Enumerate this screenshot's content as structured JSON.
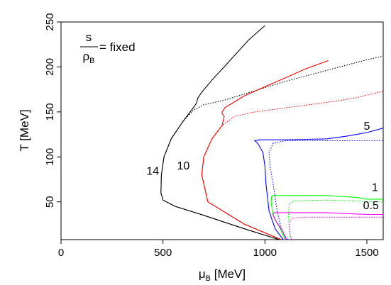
{
  "chart_data": {
    "type": "line",
    "ylabel": "T [MeV]",
    "xlabel_symbol": "μ",
    "xlabel_sub": "B",
    "xlabel_unit": " [MeV]",
    "xlim": [
      0,
      1580
    ],
    "ylim": [
      8,
      250
    ],
    "x_ticks": [
      0,
      500,
      1000,
      1500
    ],
    "y_ticks": [
      50,
      100,
      150,
      200,
      250
    ],
    "inset": {
      "numerator": "s",
      "denominator_symbol": "ρ",
      "denominator_sub": "B",
      "rhs": "= fixed"
    },
    "series": [
      {
        "name": "14",
        "color": "#000000",
        "solid": [
          [
            1070,
            8
          ],
          [
            900,
            20
          ],
          [
            700,
            35
          ],
          [
            560,
            45
          ],
          [
            500,
            52
          ],
          [
            490,
            60
          ],
          [
            492,
            80
          ],
          [
            505,
            100
          ],
          [
            540,
            120
          ],
          [
            600,
            140
          ],
          [
            650,
            155
          ],
          [
            665,
            160
          ],
          [
            670,
            165
          ],
          [
            690,
            172
          ],
          [
            750,
            188
          ],
          [
            800,
            200
          ],
          [
            860,
            215
          ],
          [
            920,
            230
          ],
          [
            1000,
            246
          ]
        ],
        "dotted": [
          [
            1070,
            8
          ],
          [
            900,
            20
          ],
          [
            700,
            35
          ],
          [
            560,
            45
          ],
          [
            500,
            52
          ],
          [
            490,
            60
          ],
          [
            492,
            80
          ],
          [
            505,
            100
          ],
          [
            540,
            120
          ],
          [
            600,
            140
          ],
          [
            650,
            152
          ],
          [
            700,
            158
          ],
          [
            800,
            163
          ],
          [
            900,
            170
          ],
          [
            1000,
            177
          ],
          [
            1100,
            184
          ],
          [
            1200,
            190
          ],
          [
            1300,
            196
          ],
          [
            1400,
            202
          ],
          [
            1500,
            208
          ],
          [
            1580,
            212
          ]
        ]
      },
      {
        "name": "10",
        "color": "#ff0000",
        "solid": [
          [
            1080,
            8
          ],
          [
            900,
            25
          ],
          [
            720,
            50
          ],
          [
            690,
            80
          ],
          [
            700,
            100
          ],
          [
            740,
            120
          ],
          [
            790,
            135
          ],
          [
            800,
            145
          ],
          [
            790,
            148
          ],
          [
            790,
            150
          ],
          [
            805,
            155
          ],
          [
            900,
            168
          ],
          [
            1000,
            178
          ],
          [
            1100,
            188
          ],
          [
            1200,
            198
          ],
          [
            1310,
            207
          ]
        ],
        "dotted": [
          [
            1080,
            8
          ],
          [
            900,
            25
          ],
          [
            720,
            50
          ],
          [
            690,
            80
          ],
          [
            700,
            100
          ],
          [
            740,
            120
          ],
          [
            790,
            135
          ],
          [
            850,
            145
          ],
          [
            950,
            150
          ],
          [
            1050,
            153
          ],
          [
            1150,
            156
          ],
          [
            1250,
            159
          ],
          [
            1350,
            162
          ],
          [
            1450,
            166
          ],
          [
            1580,
            173
          ]
        ]
      },
      {
        "name": "5",
        "color": "#0000ff",
        "solid": [
          [
            1090,
            8
          ],
          [
            1050,
            20
          ],
          [
            1020,
            40
          ],
          [
            1005,
            70
          ],
          [
            1000,
            90
          ],
          [
            990,
            105
          ],
          [
            965,
            115
          ],
          [
            950,
            118
          ],
          [
            975,
            119
          ],
          [
            1100,
            119
          ],
          [
            1300,
            120
          ],
          [
            1400,
            123
          ],
          [
            1500,
            127
          ],
          [
            1580,
            132
          ]
        ],
        "dotted": [
          [
            1110,
            8
          ],
          [
            1080,
            20
          ],
          [
            1060,
            40
          ],
          [
            1040,
            70
          ],
          [
            1025,
            90
          ],
          [
            1020,
            105
          ],
          [
            1040,
            115
          ],
          [
            1100,
            118
          ],
          [
            1300,
            118
          ],
          [
            1500,
            118
          ],
          [
            1580,
            118
          ]
        ]
      },
      {
        "name": "1",
        "color": "#00ff00",
        "solid": [
          [
            1100,
            8
          ],
          [
            1080,
            18
          ],
          [
            1040,
            35
          ],
          [
            1030,
            50
          ],
          [
            1033,
            56
          ],
          [
            1040,
            57
          ],
          [
            1200,
            57
          ],
          [
            1300,
            57
          ],
          [
            1450,
            55
          ],
          [
            1500,
            53
          ],
          [
            1580,
            53
          ]
        ],
        "dotted": [
          [
            1125,
            8
          ],
          [
            1120,
            20
          ],
          [
            1115,
            35
          ],
          [
            1120,
            48
          ],
          [
            1140,
            51
          ],
          [
            1300,
            52
          ],
          [
            1450,
            51
          ],
          [
            1500,
            50
          ],
          [
            1580,
            50
          ]
        ]
      },
      {
        "name": "0.5",
        "color": "#ff00ff",
        "solid": [
          [
            1105,
            8
          ],
          [
            1085,
            18
          ],
          [
            1050,
            30
          ],
          [
            1040,
            36
          ],
          [
            1045,
            38
          ],
          [
            1100,
            38
          ],
          [
            1300,
            38
          ],
          [
            1500,
            36
          ],
          [
            1580,
            36
          ]
        ],
        "dotted": [
          [
            1130,
            8
          ],
          [
            1120,
            18
          ],
          [
            1120,
            28
          ],
          [
            1135,
            32
          ],
          [
            1200,
            33
          ],
          [
            1400,
            33
          ],
          [
            1500,
            33
          ],
          [
            1580,
            33
          ]
        ]
      }
    ],
    "annotations": [
      {
        "text": "14",
        "x": 450,
        "y": 80
      },
      {
        "text": "10",
        "x": 600,
        "y": 86
      },
      {
        "text": "5",
        "x": 1500,
        "y": 130
      },
      {
        "text": "1",
        "x": 1540,
        "y": 62
      },
      {
        "text": "0.5",
        "x": 1520,
        "y": 42
      }
    ]
  }
}
